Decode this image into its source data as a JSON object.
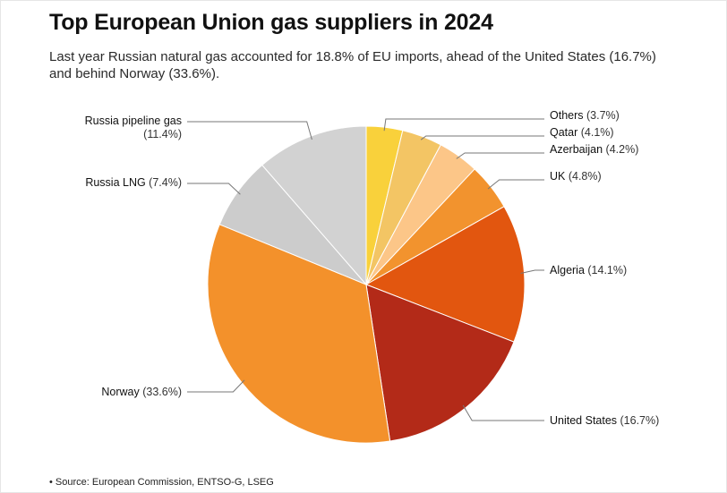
{
  "title": "Top European Union gas suppliers in 2024",
  "subtitle": "Last year Russian natural gas accounted for 18.8% of EU imports, ahead of the United States (16.7%) and behind Norway (33.6%).",
  "source": "• Source: European Commission, ENTSO-G, LSEG",
  "chart_data": {
    "type": "pie",
    "title": "Top European Union gas suppliers in 2024",
    "unit": "%",
    "slices": [
      {
        "name": "Others",
        "value": 3.7,
        "label": "(3.7%)",
        "color": "#f9d13b"
      },
      {
        "name": "Qatar",
        "value": 4.1,
        "label": "(4.1%)",
        "color": "#f3c564"
      },
      {
        "name": "Azerbaijan",
        "value": 4.2,
        "label": "(4.2%)",
        "color": "#fcc688"
      },
      {
        "name": "UK",
        "value": 4.8,
        "label": "(4.8%)",
        "color": "#f2932e"
      },
      {
        "name": "Algeria",
        "value": 14.1,
        "label": "(14.1%)",
        "color": "#e2560f"
      },
      {
        "name": "United States",
        "value": 16.7,
        "label": "(16.7%)",
        "color": "#b32a18"
      },
      {
        "name": "Norway",
        "value": 33.6,
        "label": "(33.6%)",
        "color": "#f3912b"
      },
      {
        "name": "Russia LNG",
        "value": 7.4,
        "label": "(7.4%)",
        "color": "#cccccc"
      },
      {
        "name": "Russia pipeline gas",
        "value": 11.4,
        "label": "(11.4%)",
        "color": "#d2d2d2"
      }
    ]
  }
}
